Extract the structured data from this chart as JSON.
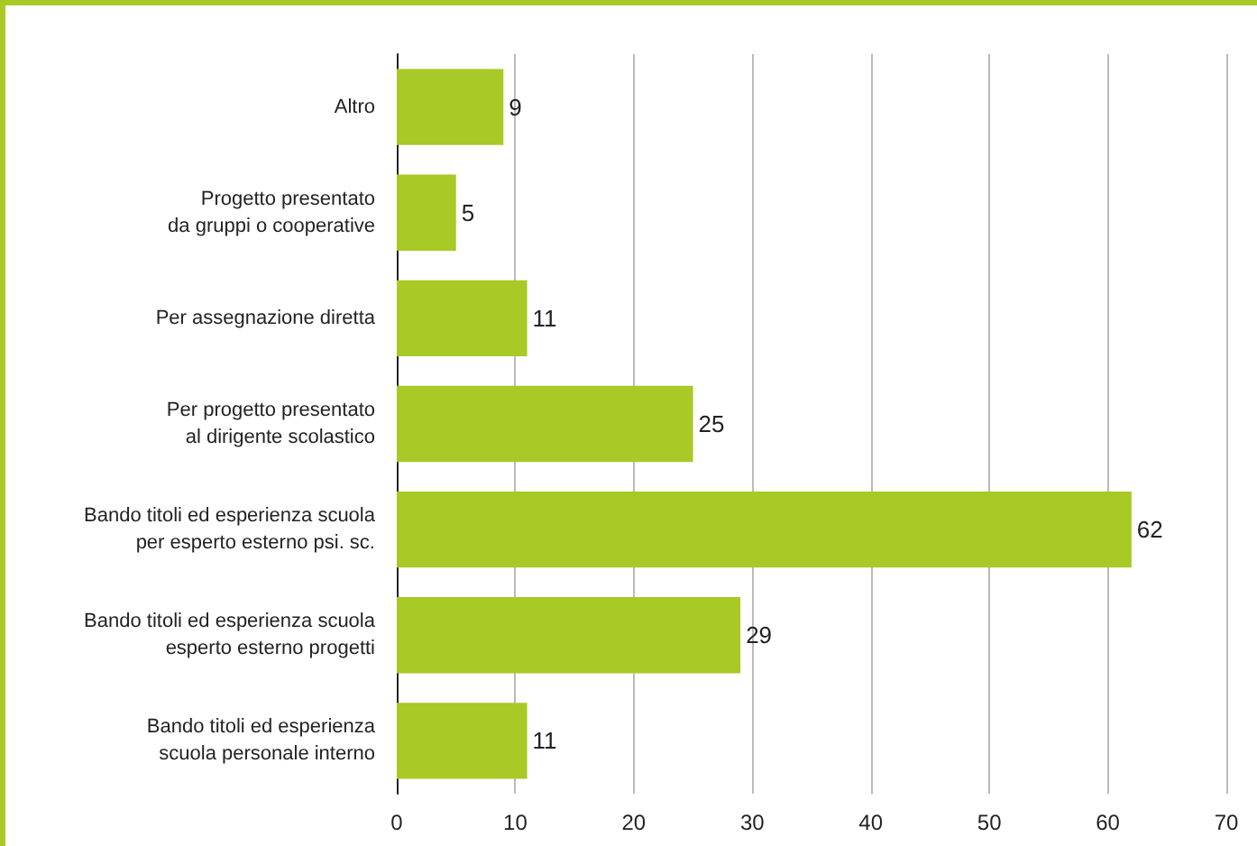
{
  "chart_data": {
    "type": "bar",
    "orientation": "horizontal",
    "categories": [
      "Altro",
      "Progetto presentato\nda gruppi o cooperative",
      "Per assegnazione diretta",
      "Per progetto presentato\nal dirigente scolastico",
      "Bando titoli ed esperienza scuola\nper esperto esterno psi. sc.",
      "Bando titoli ed esperienza scuola\nesperto esterno progetti",
      "Bando titoli ed esperienza\nscuola personale interno"
    ],
    "values": [
      9,
      5,
      11,
      25,
      62,
      29,
      11
    ],
    "color": "#a8c926",
    "xlim": [
      0,
      70
    ],
    "xticks": [
      0,
      10,
      20,
      30,
      40,
      50,
      60,
      70
    ],
    "grid": "x",
    "data_labels": true
  }
}
